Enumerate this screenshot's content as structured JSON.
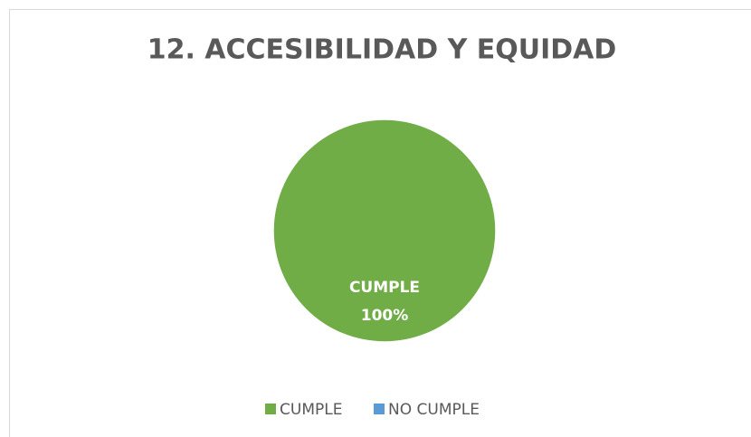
{
  "chart_data": {
    "type": "pie",
    "title": "12. ACCESIBILIDAD Y EQUIDAD",
    "categories": [
      "CUMPLE",
      "NO CUMPLE"
    ],
    "values": [
      100,
      0
    ],
    "value_labels": [
      "100%",
      null
    ],
    "colors": [
      "#70ad47",
      "#5b9bd5"
    ],
    "legend": "bottom"
  }
}
